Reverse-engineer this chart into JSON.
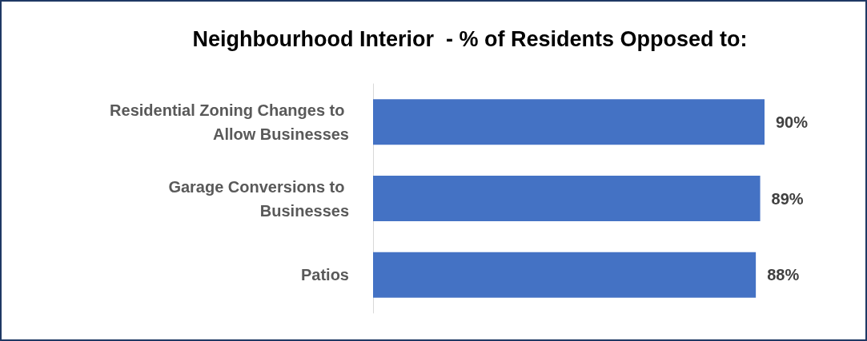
{
  "chart_data": {
    "type": "bar",
    "orientation": "horizontal",
    "title": "Neighbourhood Interior  - % of Residents Opposed to:",
    "categories": [
      "Residential Zoning Changes to Allow Businesses",
      "Garage Conversions to Businesses",
      "Patios"
    ],
    "values": [
      90,
      89,
      88
    ],
    "value_labels": [
      "90%",
      "89%",
      "88%"
    ],
    "color": "#4472c4"
  }
}
